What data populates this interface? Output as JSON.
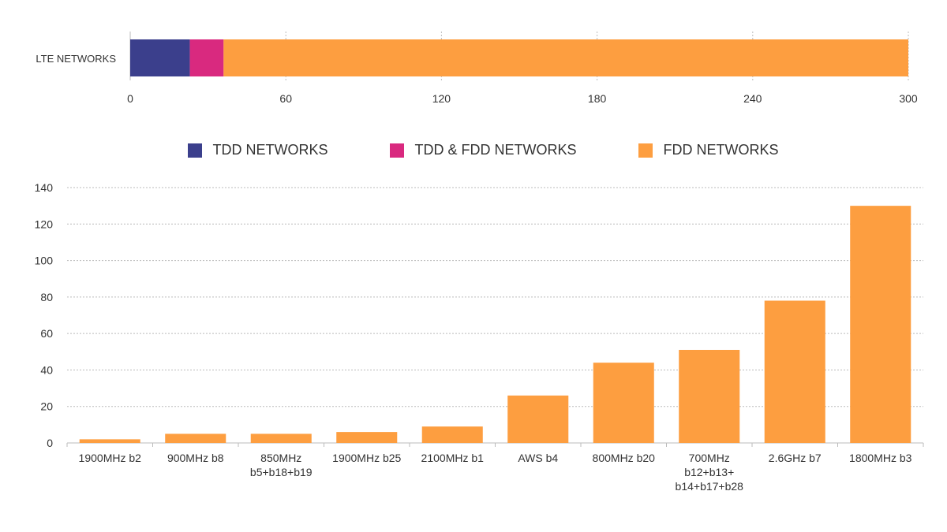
{
  "chart_data": [
    {
      "type": "bar",
      "orientation": "horizontal-stacked",
      "categories": [
        "LTE NETWORKS"
      ],
      "series": [
        {
          "name": "TDD NETWORKS",
          "values": [
            23
          ],
          "color": "#3b3f8c"
        },
        {
          "name": "TDD & FDD NETWORKS",
          "values": [
            13
          ],
          "color": "#d9297f"
        },
        {
          "name": "FDD NETWORKS",
          "values": [
            264
          ],
          "color": "#fd9e40"
        }
      ],
      "xlim": [
        0,
        300
      ],
      "xticks": [
        "0",
        "60",
        "120",
        "180",
        "240",
        "300"
      ],
      "grid": true,
      "legend": "below"
    },
    {
      "type": "bar",
      "categories": [
        "1900MHz b2",
        "900MHz b8",
        "850MHz\nb5+b18+b19",
        "1900MHz b25",
        "2100MHz b1",
        "AWS b4",
        "800MHz b20",
        "700MHz\nb12+b13+\nb14+b17+b28",
        "2.6GHz b7",
        "1800MHz b3"
      ],
      "values": [
        2,
        5,
        5,
        6,
        9,
        26,
        44,
        51,
        78,
        130
      ],
      "color": "#fd9e40",
      "ylim": [
        0,
        140
      ],
      "yticks": [
        "0",
        "20",
        "40",
        "60",
        "80",
        "100",
        "120",
        "140"
      ],
      "grid": true
    }
  ]
}
